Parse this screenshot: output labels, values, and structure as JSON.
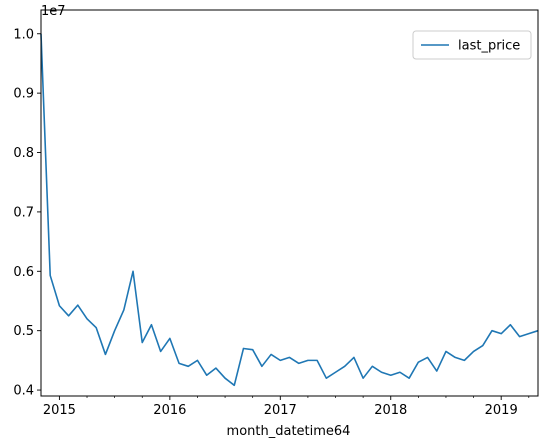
{
  "chart_data": {
    "type": "line",
    "xlabel": "month_datetime64",
    "ylabel": "",
    "y_offset_label": "1e7",
    "x_ticks": [
      "2015",
      "2016",
      "2017",
      "2018",
      "2019"
    ],
    "y_ticks": [
      "0.4",
      "0.5",
      "0.6",
      "0.7",
      "0.8",
      "0.9",
      "1.0"
    ],
    "xlim": [
      "2014-11",
      "2019-05"
    ],
    "ylim": [
      0.39,
      1.04
    ],
    "legend_position": "top-right",
    "grid": false,
    "series": [
      {
        "name": "last_price",
        "color": "#1f77b4",
        "x": [
          "2014-11",
          "2014-12",
          "2015-01",
          "2015-02",
          "2015-03",
          "2015-04",
          "2015-05",
          "2015-06",
          "2015-07",
          "2015-08",
          "2015-09",
          "2015-10",
          "2015-11",
          "2015-12",
          "2016-01",
          "2016-02",
          "2016-03",
          "2016-04",
          "2016-05",
          "2016-06",
          "2016-07",
          "2016-08",
          "2016-09",
          "2016-10",
          "2016-11",
          "2016-12",
          "2017-01",
          "2017-02",
          "2017-03",
          "2017-04",
          "2017-05",
          "2017-06",
          "2017-07",
          "2017-08",
          "2017-09",
          "2017-10",
          "2017-11",
          "2017-12",
          "2018-01",
          "2018-02",
          "2018-03",
          "2018-04",
          "2018-05",
          "2018-06",
          "2018-07",
          "2018-08",
          "2018-09",
          "2018-10",
          "2018-11",
          "2018-12",
          "2019-01",
          "2019-02",
          "2019-03",
          "2019-04",
          "2019-05"
        ],
        "values": [
          1.0,
          0.593,
          0.542,
          0.525,
          0.543,
          0.52,
          0.505,
          0.46,
          0.5,
          0.535,
          0.6,
          0.48,
          0.51,
          0.465,
          0.487,
          0.445,
          0.44,
          0.45,
          0.425,
          0.437,
          0.42,
          0.408,
          0.47,
          0.468,
          0.44,
          0.46,
          0.45,
          0.455,
          0.445,
          0.45,
          0.45,
          0.42,
          0.43,
          0.44,
          0.455,
          0.42,
          0.44,
          0.43,
          0.425,
          0.43,
          0.42,
          0.447,
          0.455,
          0.432,
          0.465,
          0.455,
          0.45,
          0.465,
          0.475,
          0.5,
          0.495,
          0.51,
          0.49,
          0.495,
          0.5
        ]
      }
    ]
  }
}
